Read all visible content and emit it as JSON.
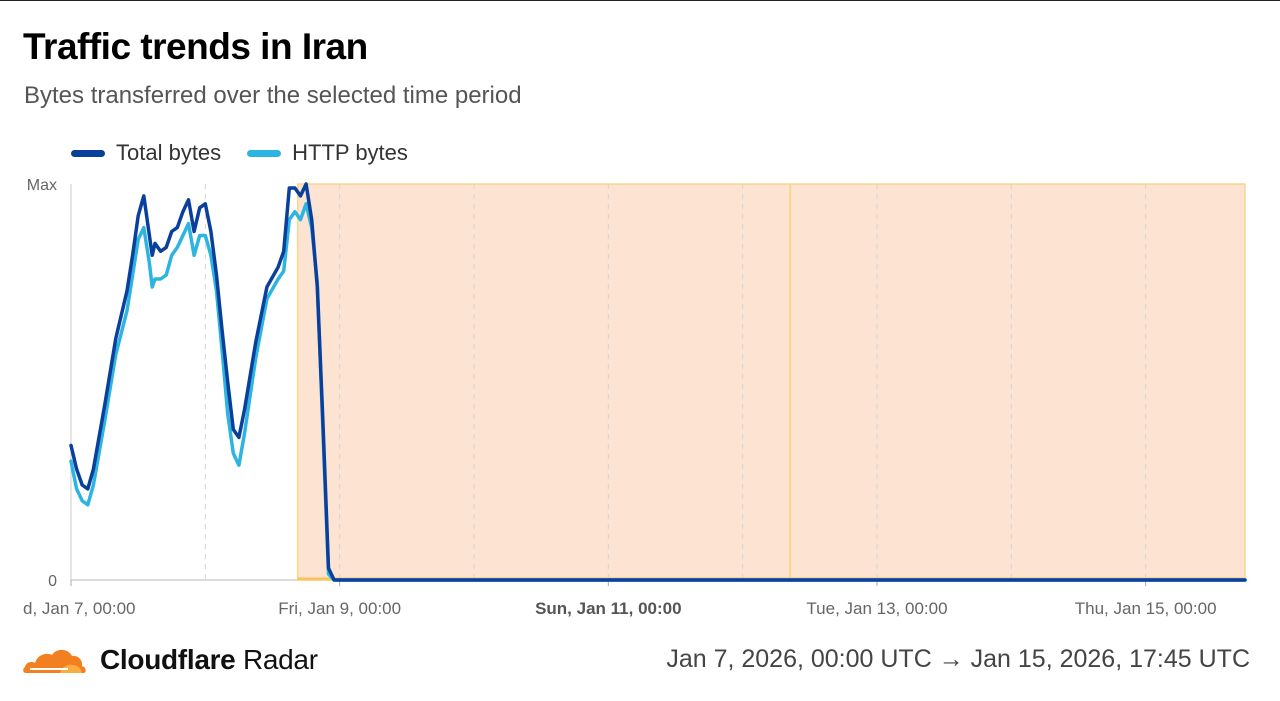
{
  "header": {
    "title": "Traffic trends in Iran",
    "subtitle": "Bytes transferred over the selected time period"
  },
  "footer": {
    "brand_bold": "Cloudflare",
    "brand_light": "Radar",
    "range": "Jan 7, 2026, 00:00 UTC → Jan 15, 2026, 17:45 UTC"
  },
  "colors": {
    "total": "#0a3f9c",
    "http": "#2eb4e0",
    "highlight_fill": "#fde3d1",
    "highlight_border": "#f9d68e",
    "brand_orange": "#f38020"
  },
  "chart_data": {
    "type": "line",
    "title": "Traffic trends in Iran",
    "subtitle": "Bytes transferred over the selected time period",
    "x_unit": "hours since Jan 7, 00:00 UTC",
    "xlim": [
      0,
      209.75
    ],
    "ylim": [
      0,
      1
    ],
    "y_tick_labels": [
      {
        "value": 1,
        "label": "Max"
      },
      {
        "value": 0,
        "label": "0"
      }
    ],
    "x_tick_labels": [
      {
        "x": 0,
        "label": "d, Jan 7, 00:00",
        "bold": false
      },
      {
        "x": 48,
        "label": "Fri, Jan 9, 00:00",
        "bold": false
      },
      {
        "x": 96,
        "label": "Sun, Jan 11, 00:00",
        "bold": true
      },
      {
        "x": 144,
        "label": "Tue, Jan 13, 00:00",
        "bold": false
      },
      {
        "x": 192,
        "label": "Thu, Jan 15, 00:00",
        "bold": false
      }
    ],
    "grid_lines_x": [
      24,
      48,
      72,
      96,
      120,
      144,
      168,
      192
    ],
    "highlight_range": {
      "start": 40.5,
      "end": 209.75
    },
    "marker_line_x": 128.5,
    "legend_position": "top-left",
    "series": [
      {
        "name": "Total bytes",
        "points": [
          [
            0,
            0.34
          ],
          [
            1,
            0.28
          ],
          [
            2,
            0.24
          ],
          [
            3,
            0.23
          ],
          [
            4,
            0.28
          ],
          [
            6,
            0.44
          ],
          [
            8,
            0.61
          ],
          [
            10,
            0.73
          ],
          [
            11,
            0.82
          ],
          [
            12,
            0.92
          ],
          [
            13,
            0.97
          ],
          [
            14,
            0.87
          ],
          [
            14.5,
            0.82
          ],
          [
            15,
            0.85
          ],
          [
            16,
            0.83
          ],
          [
            17,
            0.84
          ],
          [
            18,
            0.88
          ],
          [
            19,
            0.89
          ],
          [
            20,
            0.93
          ],
          [
            21,
            0.96
          ],
          [
            22,
            0.88
          ],
          [
            23,
            0.94
          ],
          [
            24,
            0.95
          ],
          [
            25,
            0.88
          ],
          [
            26,
            0.77
          ],
          [
            27,
            0.63
          ],
          [
            28,
            0.5
          ],
          [
            29,
            0.38
          ],
          [
            30,
            0.36
          ],
          [
            31,
            0.43
          ],
          [
            33,
            0.6
          ],
          [
            35,
            0.74
          ],
          [
            37,
            0.79
          ],
          [
            38,
            0.83
          ],
          [
            39,
            0.99
          ],
          [
            40,
            0.99
          ],
          [
            41,
            0.97
          ],
          [
            42,
            1.0
          ],
          [
            43,
            0.91
          ],
          [
            44,
            0.74
          ],
          [
            45,
            0.4
          ],
          [
            46,
            0.03
          ],
          [
            47,
            0.0
          ],
          [
            209.75,
            0.0
          ]
        ]
      },
      {
        "name": "HTTP bytes",
        "points": [
          [
            0,
            0.3
          ],
          [
            1,
            0.23
          ],
          [
            2,
            0.2
          ],
          [
            3,
            0.19
          ],
          [
            4,
            0.24
          ],
          [
            6,
            0.4
          ],
          [
            8,
            0.57
          ],
          [
            10,
            0.68
          ],
          [
            11,
            0.77
          ],
          [
            12,
            0.86
          ],
          [
            13,
            0.89
          ],
          [
            14,
            0.8
          ],
          [
            14.5,
            0.74
          ],
          [
            15,
            0.76
          ],
          [
            16,
            0.76
          ],
          [
            17,
            0.77
          ],
          [
            18,
            0.82
          ],
          [
            19,
            0.84
          ],
          [
            20,
            0.87
          ],
          [
            21,
            0.9
          ],
          [
            22,
            0.82
          ],
          [
            23,
            0.87
          ],
          [
            24,
            0.87
          ],
          [
            25,
            0.82
          ],
          [
            26,
            0.73
          ],
          [
            27,
            0.58
          ],
          [
            28,
            0.42
          ],
          [
            29,
            0.32
          ],
          [
            30,
            0.29
          ],
          [
            31,
            0.37
          ],
          [
            33,
            0.56
          ],
          [
            35,
            0.71
          ],
          [
            37,
            0.76
          ],
          [
            38,
            0.78
          ],
          [
            39,
            0.91
          ],
          [
            40,
            0.93
          ],
          [
            41,
            0.91
          ],
          [
            42,
            0.95
          ],
          [
            43,
            0.89
          ],
          [
            44,
            0.75
          ],
          [
            45,
            0.38
          ],
          [
            46,
            0.015
          ],
          [
            47,
            0.0
          ],
          [
            209.75,
            0.0
          ]
        ]
      }
    ]
  }
}
